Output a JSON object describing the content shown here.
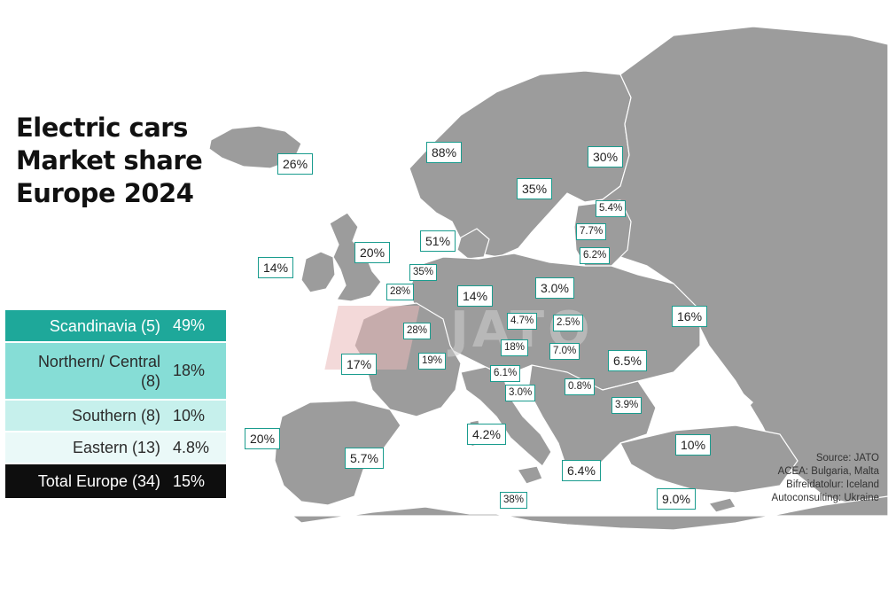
{
  "title": [
    "Electric cars",
    "Market share",
    "Europe 2024"
  ],
  "colors": {
    "map_land": "#9c9c9c",
    "borders": "#ffffff",
    "label_border": "#1a9c8e",
    "scandinavia": "#1ea89a",
    "northern_central": "#86ddd6",
    "southern": "#c6f0ec",
    "eastern": "#eaf9f8",
    "total": "#0e0e0e"
  },
  "regions": [
    {
      "name": "Scandinavia (5)",
      "value": "49%"
    },
    {
      "name": "Northern/ Central (8)",
      "value": "18%"
    },
    {
      "name": "Southern (8)",
      "value": "10%"
    },
    {
      "name": "Eastern (13)",
      "value": "4.8%"
    },
    {
      "name": "Total Europe (34)",
      "value": "15%"
    }
  ],
  "countries": [
    {
      "id": "iceland",
      "value": "26%"
    },
    {
      "id": "norway",
      "value": "88%"
    },
    {
      "id": "finland",
      "value": "30%"
    },
    {
      "id": "sweden",
      "value": "35%"
    },
    {
      "id": "estonia",
      "value": "5.4%"
    },
    {
      "id": "latvia",
      "value": "7.7%"
    },
    {
      "id": "lithuania",
      "value": "6.2%"
    },
    {
      "id": "denmark",
      "value": "51%"
    },
    {
      "id": "ireland",
      "value": "14%"
    },
    {
      "id": "uk",
      "value": "20%"
    },
    {
      "id": "netherlands",
      "value": "35%"
    },
    {
      "id": "belgium",
      "value": "28%"
    },
    {
      "id": "germany",
      "value": "14%"
    },
    {
      "id": "poland",
      "value": "3.0%"
    },
    {
      "id": "ukraine",
      "value": "16%"
    },
    {
      "id": "luxembourg",
      "value": "28%"
    },
    {
      "id": "czechia",
      "value": "4.7%"
    },
    {
      "id": "slovakia",
      "value": "2.5%"
    },
    {
      "id": "austria",
      "value": "18%"
    },
    {
      "id": "hungary",
      "value": "7.0%"
    },
    {
      "id": "romania",
      "value": "6.5%"
    },
    {
      "id": "france",
      "value": "17%"
    },
    {
      "id": "switzerland",
      "value": "19%"
    },
    {
      "id": "slovenia",
      "value": "6.1%"
    },
    {
      "id": "croatia",
      "value": "3.0%"
    },
    {
      "id": "serbia",
      "value": "0.8%"
    },
    {
      "id": "bulgaria",
      "value": "3.9%"
    },
    {
      "id": "italy",
      "value": "4.2%"
    },
    {
      "id": "portugal",
      "value": "20%"
    },
    {
      "id": "spain",
      "value": "5.7%"
    },
    {
      "id": "greece",
      "value": "6.4%"
    },
    {
      "id": "turkey",
      "value": "10%"
    },
    {
      "id": "malta",
      "value": "38%"
    },
    {
      "id": "cyprus",
      "value": "9.0%"
    }
  ],
  "source": [
    "Source: JATO",
    "ACEA: Bulgaria, Malta",
    "Bifreidatolur: Iceland",
    "Autoconsulting: Ukraine"
  ]
}
